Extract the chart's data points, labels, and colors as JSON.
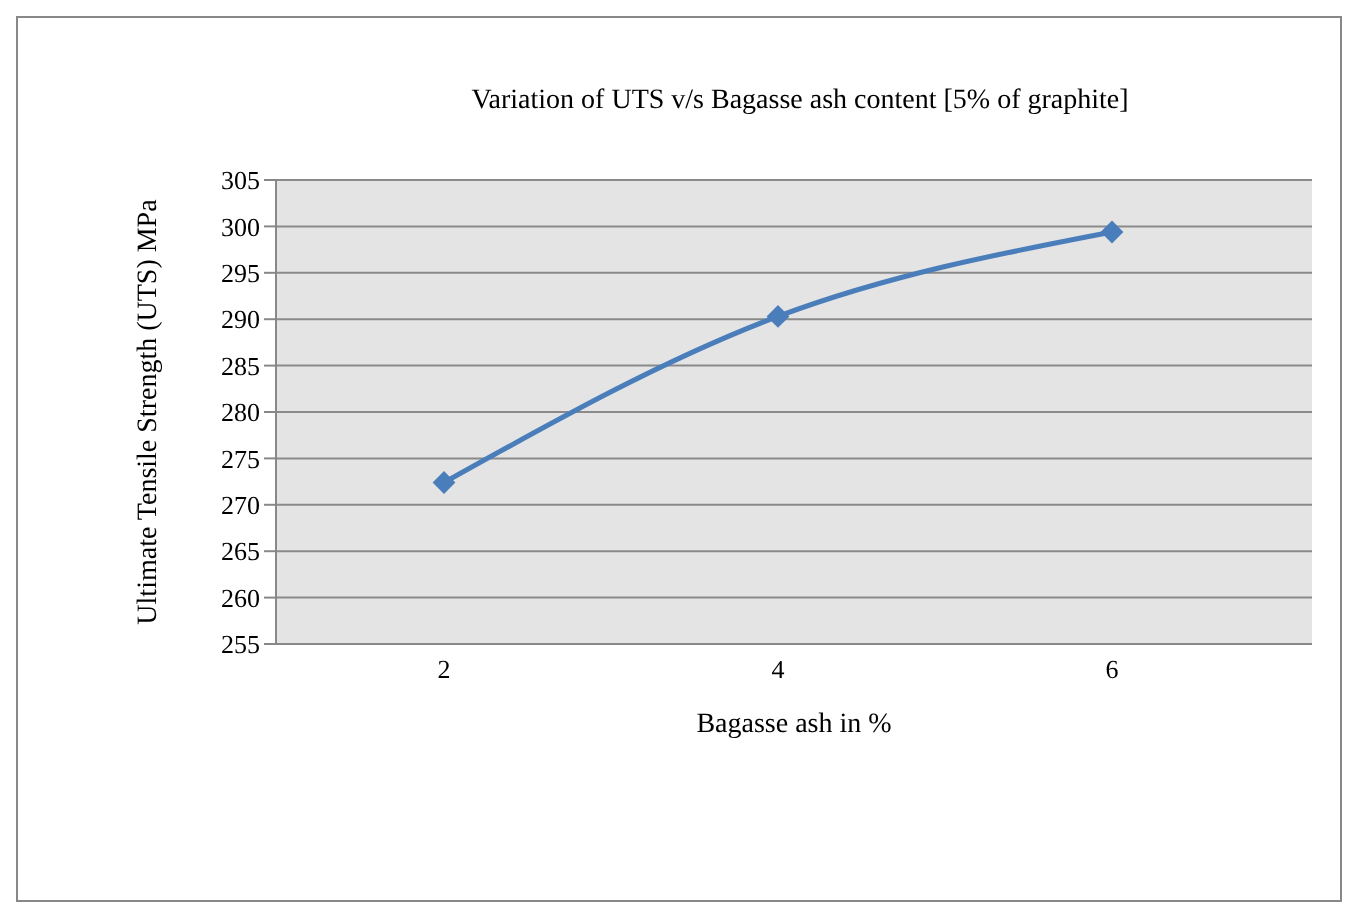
{
  "chart_data": {
    "type": "line",
    "title": "Variation of UTS v/s Bagasse ash content  [5% of graphite]",
    "xlabel": "Bagasse ash in %",
    "ylabel": "Ultimate Tensile Strength (UTS) MPa",
    "categories": [
      "2",
      "4",
      "6"
    ],
    "series": [
      {
        "color": "#4a7ebb",
        "values": [
          272.4,
          290.3,
          299.4
        ]
      }
    ],
    "ylim": [
      255,
      305
    ],
    "yticks": [
      255,
      260,
      265,
      270,
      275,
      280,
      285,
      290,
      295,
      300,
      305
    ],
    "grid": "y",
    "legend": false,
    "marker": "diamond",
    "line_style": "solid"
  }
}
